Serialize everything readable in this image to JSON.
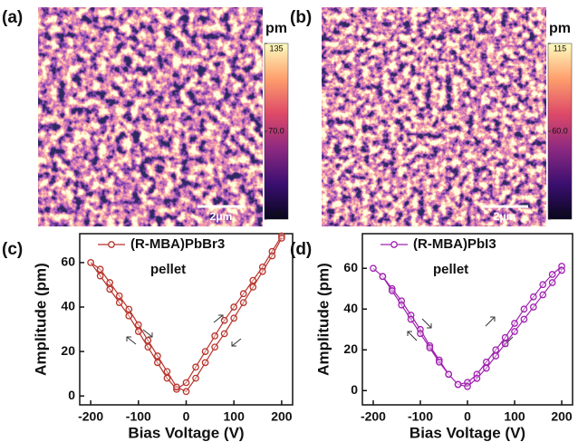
{
  "chart_data": [
    {
      "type": "image",
      "panel_label": "(a)",
      "colorbar_label": "pm",
      "clim": [
        5,
        135
      ],
      "cticks": [
        135,
        {
          "value": 70,
          "label": "70.0"
        },
        {
          "value": 5,
          "label": "5.00"
        }
      ],
      "colormap": [
        "#08061e",
        "#3b0f70",
        "#8c2981",
        "#de4968",
        "#fe9f6d",
        "#fcfdbf"
      ],
      "scale_bar": "2μm"
    },
    {
      "type": "image",
      "panel_label": "(b)",
      "colorbar_label": "pm",
      "clim": [
        5,
        115
      ],
      "cticks": [
        115,
        {
          "value": 60,
          "label": "60.0"
        },
        {
          "value": 5,
          "label": "5.00"
        }
      ],
      "colormap": [
        "#08061e",
        "#3b0f70",
        "#8c2981",
        "#de4968",
        "#fe9f6d",
        "#fcfdbf"
      ],
      "scale_bar": "2μm"
    },
    {
      "type": "line",
      "panel_label": "(c)",
      "annotation": "pellet",
      "x_label": "Bias Voltage (V)",
      "y_label": "Amplitude (pm)",
      "xlim": [
        -223,
        223
      ],
      "xticks": [
        -200,
        -100,
        0,
        100,
        200
      ],
      "ylim": [
        -4,
        73
      ],
      "yticks": [
        0,
        20,
        40,
        60
      ],
      "legend": "top-left",
      "x": [
        200,
        180,
        160,
        140,
        120,
        100,
        80,
        60,
        40,
        20,
        0,
        -20,
        -40,
        -60,
        -80,
        -100,
        -120,
        -140,
        -160,
        -180,
        -200,
        -180,
        -160,
        -140,
        -120,
        -100,
        -80,
        -60,
        -40,
        -20,
        0,
        20,
        40,
        60,
        80,
        100,
        120,
        140,
        160,
        180,
        200
      ],
      "series": [
        {
          "name": "(R-MBA)PbBr3",
          "color": "#b8322a",
          "values": [
            72,
            65,
            58,
            52,
            46,
            40,
            34,
            27,
            20,
            13,
            6,
            3,
            8,
            15,
            22,
            29,
            36,
            42,
            48,
            54,
            60,
            57,
            51,
            45,
            39,
            32,
            25,
            18,
            11,
            4,
            2,
            8,
            15,
            22,
            28,
            35,
            42,
            49,
            56,
            63,
            71
          ]
        }
      ]
    },
    {
      "type": "line",
      "panel_label": "(d)",
      "annotation": "pellet",
      "x_label": "Bias Voltage (V)",
      "y_label": "Amplitude (pm)",
      "xlim": [
        -223,
        223
      ],
      "xticks": [
        -200,
        -100,
        0,
        100,
        200
      ],
      "ylim": [
        -7,
        77
      ],
      "yticks": [
        0,
        20,
        40,
        60
      ],
      "legend": "top-left",
      "x": [
        200,
        180,
        160,
        140,
        120,
        100,
        80,
        60,
        40,
        20,
        0,
        -20,
        -40,
        -60,
        -80,
        -100,
        -120,
        -140,
        -160,
        -180,
        -200,
        -180,
        -160,
        -140,
        -120,
        -100,
        -80,
        -60,
        -40,
        -20,
        0,
        20,
        40,
        60,
        80,
        100,
        120,
        140,
        160,
        180,
        200
      ],
      "series": [
        {
          "name": "(R-MBA)PbI3",
          "color": "#a021b0",
          "values": [
            61,
            57,
            52,
            46,
            40,
            33,
            26,
            20,
            14,
            8,
            4,
            3,
            8,
            15,
            22,
            30,
            37,
            44,
            50,
            56,
            60,
            56,
            49,
            42,
            35,
            28,
            21,
            14,
            8,
            3,
            2,
            6,
            11,
            17,
            23,
            29,
            35,
            41,
            47,
            53,
            59
          ]
        }
      ]
    }
  ]
}
